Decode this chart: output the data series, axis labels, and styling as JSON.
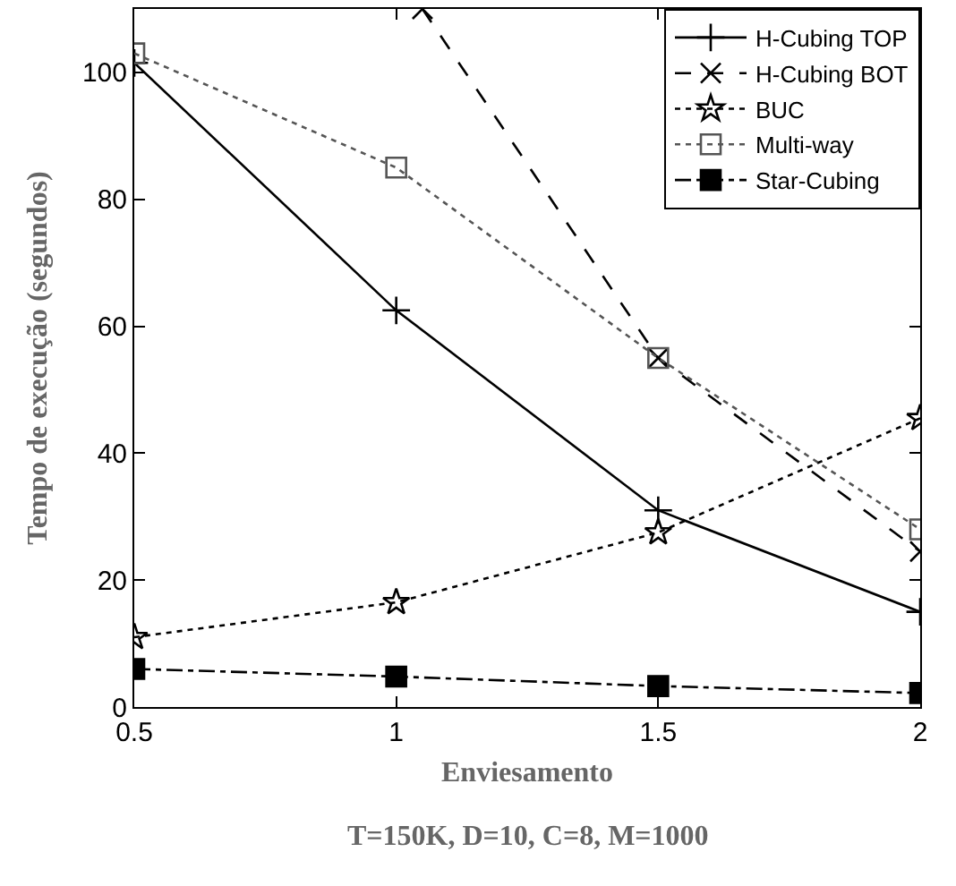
{
  "chart_data": {
    "type": "line",
    "xlabel": "Enviesamento",
    "ylabel": "Tempo de execução (segundos)",
    "annotations": [
      "T=150K, D=10, C=8, M=1000"
    ],
    "x": [
      0.5,
      1,
      1.5,
      2
    ],
    "xlim": [
      0.5,
      2
    ],
    "xticks": [
      0.5,
      1,
      1.5,
      2
    ],
    "ylim": [
      0,
      110
    ],
    "yticks": [
      0,
      20,
      40,
      60,
      80,
      100
    ],
    "legend": "top right",
    "series": [
      {
        "name": "H-Cubing TOP",
        "color": "#000000",
        "values": [
          101.5,
          62.5,
          31,
          15
        ],
        "marker": "cross",
        "line_style": "solid"
      },
      {
        "name": "H-Cubing BOT",
        "color": "#000000",
        "x": [
          1.05,
          1.5,
          2
        ],
        "values": [
          110,
          55,
          24.5
        ],
        "marker": "x",
        "line_style": "dashed"
      },
      {
        "name": "BUC",
        "color": "#000000",
        "values": [
          11,
          16.5,
          27.5,
          45.5
        ],
        "marker": "star",
        "line_style": "dotted"
      },
      {
        "name": "Multi-way",
        "color": "#555555",
        "values": [
          103,
          85,
          55,
          28
        ],
        "marker": "square-open",
        "line_style": "dotted"
      },
      {
        "name": "Star-Cubing",
        "color": "#000000",
        "values": [
          6,
          4.8,
          3.3,
          2.2
        ],
        "marker": "square",
        "line_style": "dashdot"
      }
    ]
  }
}
